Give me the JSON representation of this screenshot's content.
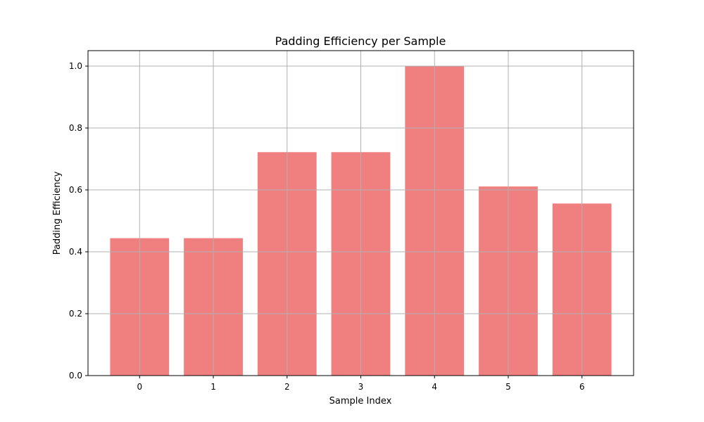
{
  "chart_data": {
    "type": "bar",
    "title": "Padding Efficiency per Sample",
    "xlabel": "Sample Index",
    "ylabel": "Padding Efficiency",
    "categories": [
      "0",
      "1",
      "2",
      "3",
      "4",
      "5",
      "6"
    ],
    "values": [
      0.444,
      0.444,
      0.722,
      0.722,
      1.0,
      0.611,
      0.556
    ],
    "xlim": [
      -0.7,
      6.7
    ],
    "ylim": [
      0,
      1.05
    ],
    "yticks": [
      0.0,
      0.2,
      0.4,
      0.6,
      0.8,
      1.0
    ],
    "ytick_labels": [
      "0.0",
      "0.2",
      "0.4",
      "0.6",
      "0.8",
      "1.0"
    ],
    "grid": true,
    "legend": false,
    "bar_color": "#f08080",
    "grid_color": "#b0b0b0"
  }
}
